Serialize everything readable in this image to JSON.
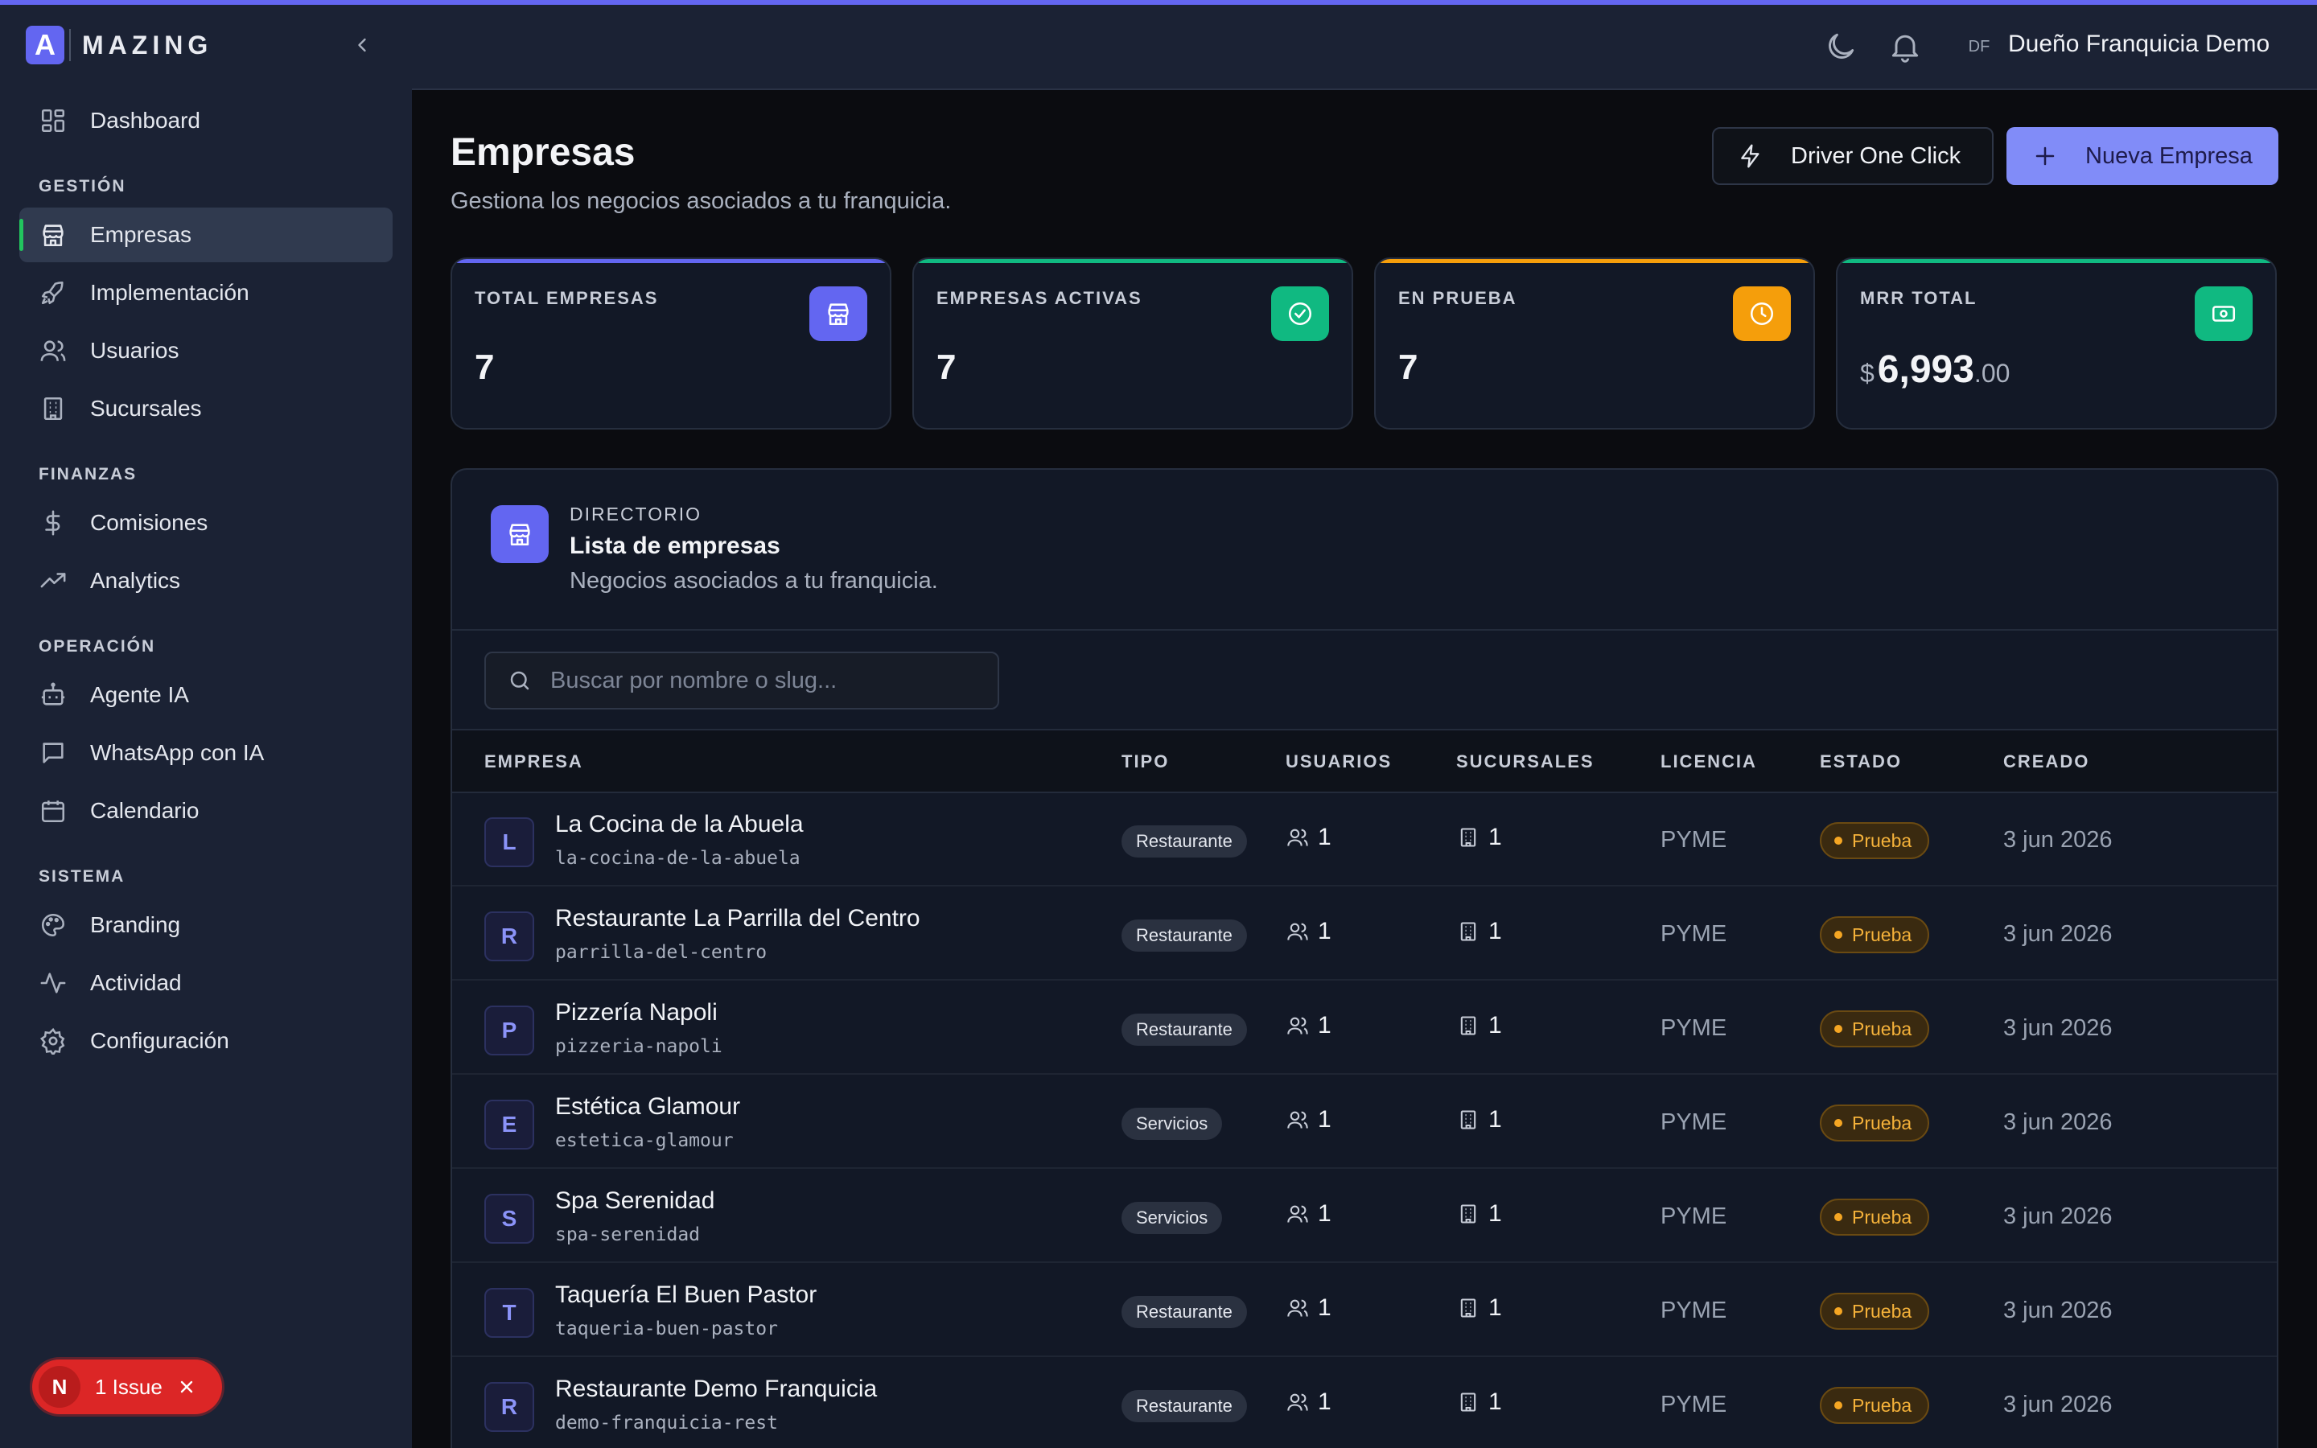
{
  "brand": {
    "logo_letter": "A",
    "name": "MAZING"
  },
  "header": {
    "avatar_initials": "DF",
    "user_name": "Dueño Franquicia Demo"
  },
  "sidebar": {
    "dashboard": "Dashboard",
    "sections": [
      {
        "title": "GESTIÓN",
        "items": [
          {
            "label": "Empresas",
            "icon": "store-icon",
            "active": true
          },
          {
            "label": "Implementación",
            "icon": "rocket-icon"
          },
          {
            "label": "Usuarios",
            "icon": "users-icon"
          },
          {
            "label": "Sucursales",
            "icon": "building-icon"
          }
        ]
      },
      {
        "title": "FINANZAS",
        "items": [
          {
            "label": "Comisiones",
            "icon": "dollar-icon"
          },
          {
            "label": "Analytics",
            "icon": "trending-up-icon"
          }
        ]
      },
      {
        "title": "OPERACIÓN",
        "items": [
          {
            "label": "Agente IA",
            "icon": "bot-icon"
          },
          {
            "label": "WhatsApp con IA",
            "icon": "message-icon"
          },
          {
            "label": "Calendario",
            "icon": "calendar-icon"
          }
        ]
      },
      {
        "title": "SISTEMA",
        "items": [
          {
            "label": "Branding",
            "icon": "palette-icon"
          },
          {
            "label": "Actividad",
            "icon": "activity-icon"
          },
          {
            "label": "Configuración",
            "icon": "gear-icon"
          }
        ]
      }
    ]
  },
  "issue_badge": {
    "letter": "N",
    "text": "1 Issue"
  },
  "page": {
    "title": "Empresas",
    "subtitle": "Gestiona los negocios asociados a tu franquicia.",
    "driver_button": "Driver One Click",
    "new_button": "Nueva Empresa"
  },
  "stats": [
    {
      "label": "TOTAL EMPRESAS",
      "value": "7",
      "color": "#6366f1",
      "icon": "store-icon"
    },
    {
      "label": "EMPRESAS ACTIVAS",
      "value": "7",
      "color": "#10b981",
      "icon": "check-circle-icon"
    },
    {
      "label": "EN PRUEBA",
      "value": "7",
      "color": "#f59e0b",
      "icon": "clock-icon"
    },
    {
      "label": "MRR TOTAL",
      "currency": "$",
      "int": "6,993",
      "dec": ".00",
      "color": "#10b981",
      "icon": "banknote-icon"
    }
  ],
  "directory": {
    "kicker": "DIRECTORIO",
    "title": "Lista de empresas",
    "subtitle": "Negocios asociados a tu franquicia.",
    "search_placeholder": "Buscar por nombre o slug...",
    "columns": [
      "EMPRESA",
      "TIPO",
      "USUARIOS",
      "SUCURSALES",
      "LICENCIA",
      "ESTADO",
      "CREADO"
    ],
    "rows": [
      {
        "initial": "L",
        "name": "La Cocina de la Abuela",
        "slug": "la-cocina-de-la-abuela",
        "tipo": "Restaurante",
        "usuarios": "1",
        "sucursales": "1",
        "licencia": "PYME",
        "estado": "Prueba",
        "creado": "3 jun 2026"
      },
      {
        "initial": "R",
        "name": "Restaurante La Parrilla del Centro",
        "slug": "parrilla-del-centro",
        "tipo": "Restaurante",
        "usuarios": "1",
        "sucursales": "1",
        "licencia": "PYME",
        "estado": "Prueba",
        "creado": "3 jun 2026"
      },
      {
        "initial": "P",
        "name": "Pizzería Napoli",
        "slug": "pizzeria-napoli",
        "tipo": "Restaurante",
        "usuarios": "1",
        "sucursales": "1",
        "licencia": "PYME",
        "estado": "Prueba",
        "creado": "3 jun 2026"
      },
      {
        "initial": "E",
        "name": "Estética Glamour",
        "slug": "estetica-glamour",
        "tipo": "Servicios",
        "usuarios": "1",
        "sucursales": "1",
        "licencia": "PYME",
        "estado": "Prueba",
        "creado": "3 jun 2026"
      },
      {
        "initial": "S",
        "name": "Spa Serenidad",
        "slug": "spa-serenidad",
        "tipo": "Servicios",
        "usuarios": "1",
        "sucursales": "1",
        "licencia": "PYME",
        "estado": "Prueba",
        "creado": "3 jun 2026"
      },
      {
        "initial": "T",
        "name": "Taquería El Buen Pastor",
        "slug": "taqueria-buen-pastor",
        "tipo": "Restaurante",
        "usuarios": "1",
        "sucursales": "1",
        "licencia": "PYME",
        "estado": "Prueba",
        "creado": "3 jun 2026"
      },
      {
        "initial": "R",
        "name": "Restaurante Demo Franquicia",
        "slug": "demo-franquicia-rest",
        "tipo": "Restaurante",
        "usuarios": "1",
        "sucursales": "1",
        "licencia": "PYME",
        "estado": "Prueba",
        "creado": "3 jun 2026"
      }
    ]
  }
}
